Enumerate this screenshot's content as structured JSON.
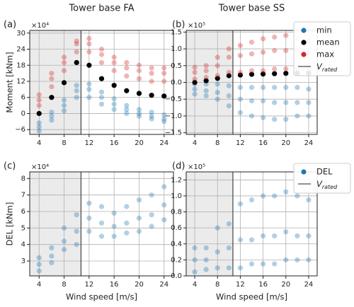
{
  "chart_data": [
    {
      "type": "scatter",
      "title": "Tower base FA",
      "panel_label": "(a)",
      "ylabel": "Moment [kNm]",
      "scale_label": "×10⁴",
      "xlim": [
        2.5,
        25.5
      ],
      "xticks": [
        4,
        8,
        12,
        16,
        20,
        24
      ],
      "ylim": [
        -7.8,
        31
      ],
      "yticks": [
        {
          "value": -6,
          "label": "−6"
        },
        0,
        6,
        12,
        18,
        24,
        30
      ],
      "grid": true,
      "rated_speed": 10.7,
      "series": [
        {
          "color": "#1f77b4",
          "x": [
            4,
            4,
            4,
            6,
            6,
            6,
            8,
            8,
            8,
            10,
            10,
            10,
            12,
            12,
            12,
            14,
            14,
            14,
            16,
            16,
            16,
            18,
            18,
            18,
            20,
            20,
            20,
            22,
            22,
            22,
            24,
            24,
            24
          ],
          "values": [
            -6.5,
            -5,
            -3.5,
            -2.5,
            -1,
            0.5,
            1,
            3,
            5,
            6,
            8.5,
            10.5,
            6,
            9,
            11,
            3.5,
            6,
            8,
            1.5,
            3.5,
            5.5,
            0,
            1.5,
            3,
            -1,
            0,
            1.5,
            -2,
            -1,
            0.5,
            -3,
            -2,
            -0.5
          ]
        },
        {
          "color": "#d62728",
          "x": [
            4,
            4,
            4,
            6,
            6,
            6,
            8,
            8,
            8,
            10,
            10,
            10,
            12,
            12,
            12,
            14,
            14,
            14,
            16,
            16,
            16,
            18,
            18,
            18,
            20,
            20,
            20,
            22,
            22,
            22,
            24,
            24,
            24
          ],
          "values": [
            3,
            5,
            7,
            10,
            13,
            15,
            16,
            19,
            21,
            23,
            26,
            27,
            23,
            26,
            28,
            19,
            22,
            24,
            16,
            19,
            21,
            14,
            17,
            19,
            13,
            16,
            18,
            12,
            15,
            17,
            12,
            15,
            17
          ]
        },
        {
          "color": "#000000",
          "x": [
            4,
            6,
            8,
            10,
            12,
            14,
            16,
            18,
            20,
            22,
            24
          ],
          "values": [
            0,
            6,
            11.5,
            19,
            18,
            13,
            10.5,
            8.5,
            7.5,
            6.8,
            6.5
          ]
        }
      ]
    },
    {
      "type": "scatter",
      "title": "Tower base SS",
      "panel_label": "(b)",
      "scale_label": "×10⁵",
      "xlim": [
        2.5,
        25.5
      ],
      "xticks": [
        4,
        8,
        12,
        16,
        20,
        24
      ],
      "ylim": [
        -1.55,
        1.55
      ],
      "yticks": [
        {
          "value": -1.5,
          "label": "−1.5"
        },
        {
          "value": -1,
          "label": "−1.0"
        },
        {
          "value": -0.5,
          "label": "−0.5"
        },
        {
          "value": 0,
          "label": "0.0"
        },
        0.5,
        {
          "value": 1,
          "label": "1.0"
        },
        1.5
      ],
      "grid": true,
      "rated_speed": 10.7,
      "legend": "upper right",
      "rated_label": {
        "main": "V",
        "sub": "rated"
      },
      "series": [
        {
          "name": "min",
          "color": "#1f77b4",
          "x": [
            4,
            4,
            4,
            6,
            6,
            6,
            8,
            8,
            8,
            10,
            10,
            10,
            12,
            12,
            12,
            14,
            14,
            14,
            16,
            16,
            16,
            18,
            18,
            18,
            20,
            20,
            20,
            22,
            22,
            22,
            24,
            24,
            24
          ],
          "values": [
            -0.35,
            -0.2,
            -0.05,
            -0.4,
            -0.25,
            -0.05,
            -0.5,
            -0.3,
            -0.05,
            -0.7,
            -0.4,
            -0.1,
            -0.9,
            -0.5,
            -0.15,
            -1.0,
            -0.55,
            -0.15,
            -1.05,
            -0.55,
            -0.15,
            -1.1,
            -0.6,
            -0.15,
            -1.1,
            -0.6,
            -0.15,
            -1.0,
            -0.6,
            -0.15,
            -1.0,
            -0.6,
            -0.2
          ]
        },
        {
          "name": "mean",
          "color": "#000000",
          "x": [
            4,
            6,
            8,
            10,
            12,
            14,
            16,
            18,
            20,
            22,
            24
          ],
          "values": [
            0,
            0.05,
            0.12,
            0.2,
            0.22,
            0.24,
            0.25,
            0.26,
            0.27,
            0.28,
            0.28
          ]
        },
        {
          "name": "max",
          "color": "#d62728",
          "x": [
            4,
            4,
            4,
            6,
            6,
            6,
            8,
            8,
            8,
            10,
            10,
            10,
            12,
            12,
            12,
            14,
            14,
            14,
            16,
            16,
            16,
            18,
            18,
            18,
            20,
            20,
            20,
            22,
            22,
            22,
            24,
            24,
            24
          ],
          "values": [
            0.1,
            0.3,
            0.45,
            0.15,
            0.35,
            0.5,
            0.2,
            0.5,
            0.75,
            0.3,
            0.75,
            1.0,
            0.3,
            0.8,
            1.1,
            0.35,
            0.85,
            1.2,
            0.35,
            0.9,
            1.3,
            0.4,
            0.95,
            1.35,
            0.4,
            0.95,
            1.4,
            0.4,
            0.95,
            1.3,
            0.4,
            0.9,
            1.25
          ]
        }
      ]
    },
    {
      "type": "scatter",
      "panel_label": "(c)",
      "ylabel": "DEL [kNm]",
      "xlabel": "Wind speed [m/s]",
      "scale_label": "×10⁴",
      "xlim": [
        2.5,
        25.5
      ],
      "xticks": [
        4,
        8,
        12,
        16,
        20,
        24
      ],
      "ylim": [
        2.1,
        8.4
      ],
      "yticks": [
        3,
        4,
        5,
        6,
        7,
        8
      ],
      "grid": true,
      "rated_speed": 10.7,
      "series": [
        {
          "color": "#1f77b4",
          "x": [
            4,
            4,
            4,
            6,
            6,
            6,
            8,
            8,
            8,
            10,
            10,
            10,
            12,
            12,
            12,
            14,
            14,
            14,
            16,
            16,
            16,
            18,
            18,
            18,
            20,
            20,
            20,
            22,
            22,
            22,
            24,
            24,
            24
          ],
          "values": [
            2.4,
            2.8,
            3.2,
            2.9,
            3.3,
            3.8,
            3.7,
            4.2,
            5.0,
            4.0,
            4.8,
            5.8,
            4.8,
            5.6,
            6.5,
            4.5,
            5.3,
            6.3,
            4.5,
            5.1,
            5.9,
            4.7,
            5.3,
            6.3,
            4.8,
            5.6,
            6.7,
            5.1,
            5.8,
            7.0,
            5.5,
            6.4,
            7.5
          ]
        }
      ]
    },
    {
      "type": "scatter",
      "panel_label": "(d)",
      "xlabel": "Wind speed [m/s]",
      "scale_label": "×10⁵",
      "xlim": [
        2.5,
        25.5
      ],
      "xticks": [
        4,
        8,
        12,
        16,
        20,
        24
      ],
      "ylim": [
        0,
        1.3
      ],
      "yticks": [
        {
          "value": 0,
          "label": "0.0"
        },
        0.2,
        0.4,
        0.6,
        0.8,
        {
          "value": 1,
          "label": "1.0"
        },
        1.2
      ],
      "grid": true,
      "rated_speed": 10.7,
      "legend": "upper right",
      "rated_label": {
        "main": "V",
        "sub": "rated"
      },
      "series": [
        {
          "name": "DEL",
          "color": "#1f77b4",
          "x": [
            4,
            4,
            4,
            6,
            6,
            6,
            8,
            8,
            8,
            10,
            10,
            10,
            12,
            12,
            12,
            14,
            14,
            14,
            16,
            16,
            16,
            18,
            18,
            18,
            20,
            20,
            20,
            22,
            22,
            22,
            24,
            24,
            24
          ],
          "values": [
            0.05,
            0.2,
            0.35,
            0.08,
            0.2,
            0.35,
            0.1,
            0.3,
            0.6,
            0.1,
            0.35,
            0.65,
            0.1,
            0.45,
            0.9,
            0.15,
            0.45,
            0.95,
            0.15,
            0.5,
            1.0,
            0.15,
            0.5,
            1.0,
            0.2,
            0.55,
            1.05,
            0.2,
            0.5,
            1.0,
            0.2,
            0.5,
            0.95
          ]
        }
      ]
    }
  ]
}
